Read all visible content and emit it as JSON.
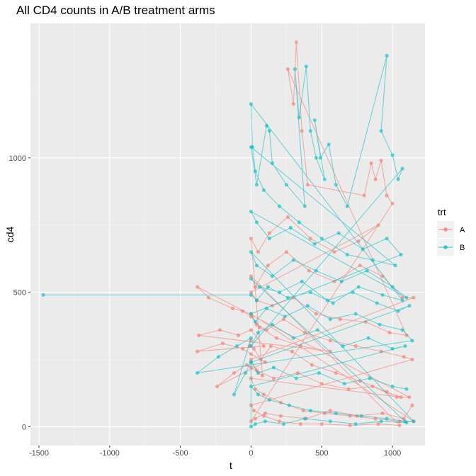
{
  "chart_data": {
    "type": "line",
    "title": "All CD4 counts in A/B treatment arms",
    "xlabel": "t",
    "ylabel": "cd4",
    "xlim": [
      -1560,
      1230
    ],
    "ylim": [
      -70,
      1500
    ],
    "x_ticks": [
      -1500,
      -1000,
      -500,
      0,
      500,
      1000
    ],
    "x_tick_labels": [
      "-1500",
      "-1000",
      "-500",
      "0",
      "500",
      "1000"
    ],
    "y_ticks": [
      0,
      500,
      1000
    ],
    "y_tick_labels": [
      "0",
      "500",
      "1000"
    ],
    "grid": true,
    "markers": true,
    "legend": {
      "title": "trt",
      "position": "right",
      "entries": [
        {
          "label": "A",
          "color": "#F8766D"
        },
        {
          "label": "B",
          "color": "#00BFC4"
        }
      ]
    },
    "series": [
      {
        "name": "A",
        "color": "#F8766D",
        "points": [
          [
            0,
            320
          ],
          [
            -10,
            300
          ],
          [
            20,
            290
          ],
          [
            70,
            250
          ],
          [
            140,
            300
          ],
          [
            290,
            280
          ],
          [
            430,
            230
          ],
          [
            600,
            200
          ],
          [
            770,
            170
          ],
          [
            960,
            130
          ],
          [
            1060,
            110
          ],
          [
            0,
            180
          ],
          [
            30,
            140
          ],
          [
            90,
            120
          ],
          [
            210,
            90
          ],
          [
            370,
            60
          ],
          [
            520,
            50
          ],
          [
            700,
            40
          ],
          [
            880,
            30
          ],
          [
            1050,
            20
          ],
          [
            1150,
            20
          ],
          [
            0,
            420
          ],
          [
            40,
            380
          ],
          [
            110,
            360
          ],
          [
            230,
            400
          ],
          [
            380,
            350
          ],
          [
            560,
            320
          ],
          [
            740,
            300
          ],
          [
            920,
            280
          ],
          [
            1080,
            260
          ],
          [
            1140,
            250
          ],
          [
            0,
            80
          ],
          [
            20,
            60
          ],
          [
            90,
            40
          ],
          [
            200,
            20
          ],
          [
            350,
            10
          ],
          [
            500,
            10
          ],
          [
            700,
            5
          ],
          [
            900,
            10
          ],
          [
            1050,
            5
          ],
          [
            0,
            560
          ],
          [
            30,
            520
          ],
          [
            120,
            600
          ],
          [
            250,
            650
          ],
          [
            410,
            580
          ],
          [
            590,
            540
          ],
          [
            770,
            600
          ],
          [
            930,
            560
          ],
          [
            1070,
            480
          ],
          [
            1150,
            480
          ],
          [
            0,
            250
          ],
          [
            40,
            210
          ],
          [
            160,
            180
          ],
          [
            330,
            200
          ],
          [
            500,
            160
          ],
          [
            690,
            140
          ],
          [
            860,
            150
          ],
          [
            1030,
            110
          ],
          [
            1120,
            110
          ],
          [
            -380,
            520
          ],
          [
            -300,
            480
          ],
          [
            -130,
            440
          ],
          [
            -60,
            430
          ],
          [
            0,
            410
          ],
          [
            60,
            370
          ],
          [
            180,
            330
          ],
          [
            350,
            300
          ],
          [
            560,
            280
          ],
          [
            -370,
            340
          ],
          [
            -220,
            360
          ],
          [
            -90,
            340
          ],
          [
            0,
            360
          ],
          [
            90,
            300
          ],
          [
            -380,
            280
          ],
          [
            -200,
            310
          ],
          [
            -60,
            290
          ],
          [
            0,
            270
          ],
          [
            100,
            240
          ],
          [
            -240,
            150
          ],
          [
            -120,
            200
          ],
          [
            -30,
            230
          ],
          [
            0,
            220
          ],
          [
            80,
            190
          ],
          [
            0,
            700
          ],
          [
            50,
            650
          ],
          [
            130,
            720
          ],
          [
            260,
            780
          ],
          [
            420,
            700
          ],
          [
            590,
            650
          ],
          [
            760,
            690
          ],
          [
            900,
            750
          ],
          [
            0,
            500
          ],
          [
            40,
            470
          ],
          [
            150,
            450
          ],
          [
            300,
            480
          ],
          [
            460,
            420
          ],
          [
            630,
            400
          ],
          [
            810,
            390
          ],
          [
            980,
            350
          ],
          [
            1100,
            340
          ],
          [
            260,
            1330
          ],
          [
            300,
            1200
          ],
          [
            320,
            1430
          ],
          [
            360,
            1100
          ],
          [
            400,
            900
          ],
          [
            800,
            860
          ],
          [
            850,
            980
          ],
          [
            880,
            920
          ],
          [
            920,
            990
          ],
          [
            960,
            860
          ],
          [
            1000,
            830
          ],
          [
            0,
            20
          ],
          [
            30,
            30
          ],
          [
            100,
            50
          ],
          [
            210,
            40
          ],
          [
            390,
            30
          ],
          [
            560,
            60
          ],
          [
            750,
            40
          ],
          [
            930,
            50
          ],
          [
            1080,
            30
          ],
          [
            1140,
            80
          ]
        ]
      },
      {
        "name": "B",
        "color": "#00BFC4",
        "points": [
          [
            -1470,
            490
          ],
          [
            0,
            490
          ],
          [
            40,
            470
          ],
          [
            120,
            520
          ],
          [
            260,
            480
          ],
          [
            420,
            500
          ],
          [
            580,
            460
          ],
          [
            760,
            520
          ],
          [
            930,
            490
          ],
          [
            1070,
            470
          ],
          [
            0,
            1200
          ],
          [
            10,
            1040
          ],
          [
            30,
            950
          ],
          [
            90,
            880
          ],
          [
            200,
            820
          ],
          [
            340,
            760
          ],
          [
            500,
            700
          ],
          [
            680,
            640
          ],
          [
            860,
            620
          ],
          [
            1020,
            600
          ],
          [
            0,
            1040
          ],
          [
            40,
            900
          ],
          [
            110,
            1120
          ],
          [
            130,
            1100
          ],
          [
            150,
            980
          ],
          [
            250,
            900
          ],
          [
            380,
            820
          ],
          [
            310,
            1330
          ],
          [
            340,
            1150
          ],
          [
            390,
            1340
          ],
          [
            420,
            1100
          ],
          [
            460,
            1000
          ],
          [
            520,
            920
          ],
          [
            450,
            1140
          ],
          [
            490,
            1000
          ],
          [
            550,
            1050
          ],
          [
            600,
            900
          ],
          [
            680,
            820
          ],
          [
            960,
            1380
          ],
          [
            920,
            1100
          ],
          [
            1000,
            1010
          ],
          [
            1040,
            920
          ],
          [
            1070,
            960
          ],
          [
            0,
            300
          ],
          [
            50,
            350
          ],
          [
            150,
            380
          ],
          [
            300,
            330
          ],
          [
            470,
            360
          ],
          [
            650,
            300
          ],
          [
            830,
            330
          ],
          [
            1000,
            290
          ],
          [
            1090,
            300
          ],
          [
            0,
            150
          ],
          [
            50,
            120
          ],
          [
            130,
            100
          ],
          [
            270,
            80
          ],
          [
            420,
            60
          ],
          [
            600,
            50
          ],
          [
            780,
            40
          ],
          [
            960,
            30
          ],
          [
            1090,
            20
          ],
          [
            1150,
            20
          ],
          [
            0,
            650
          ],
          [
            40,
            600
          ],
          [
            150,
            560
          ],
          [
            300,
            620
          ],
          [
            460,
            580
          ],
          [
            640,
            540
          ],
          [
            820,
            580
          ],
          [
            1000,
            520
          ],
          [
            1100,
            480
          ],
          [
            0,
            800
          ],
          [
            40,
            760
          ],
          [
            130,
            700
          ],
          [
            280,
            740
          ],
          [
            450,
            680
          ],
          [
            620,
            720
          ],
          [
            790,
            660
          ],
          [
            960,
            700
          ],
          [
            1060,
            640
          ],
          [
            0,
            420
          ],
          [
            30,
            390
          ],
          [
            110,
            440
          ],
          [
            240,
            410
          ],
          [
            400,
            450
          ],
          [
            560,
            400
          ],
          [
            740,
            420
          ],
          [
            910,
            380
          ],
          [
            1070,
            360
          ],
          [
            1140,
            320
          ],
          [
            -380,
            200
          ],
          [
            -230,
            260
          ],
          [
            -100,
            300
          ],
          [
            0,
            330
          ],
          [
            -120,
            120
          ],
          [
            -40,
            200
          ],
          [
            0,
            240
          ],
          [
            0,
            0
          ],
          [
            30,
            10
          ],
          [
            100,
            20
          ],
          [
            230,
            10
          ],
          [
            380,
            30
          ],
          [
            560,
            20
          ],
          [
            740,
            10
          ],
          [
            920,
            20
          ],
          [
            1100,
            15
          ],
          [
            0,
            550
          ],
          [
            60,
            520
          ],
          [
            200,
            500
          ],
          [
            360,
            540
          ],
          [
            540,
            470
          ],
          [
            720,
            500
          ],
          [
            890,
            460
          ],
          [
            1040,
            430
          ],
          [
            1120,
            450
          ],
          [
            0,
            240
          ],
          [
            50,
            200
          ],
          [
            160,
            220
          ],
          [
            320,
            180
          ],
          [
            480,
            200
          ],
          [
            660,
            160
          ],
          [
            840,
            180
          ],
          [
            1000,
            150
          ],
          [
            1100,
            140
          ]
        ]
      }
    ]
  }
}
